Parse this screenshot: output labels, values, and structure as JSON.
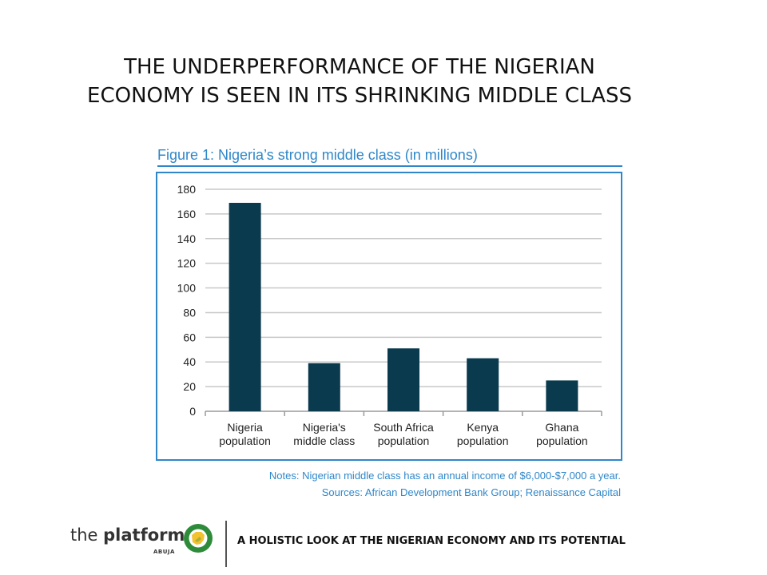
{
  "slide": {
    "title_line1": "THE UNDERPERFORMANCE OF THE NIGERIAN",
    "title_line2": "ECONOMY IS SEEN IN ITS SHRINKING MIDDLE CLASS"
  },
  "colors": {
    "bar": "#0a3a4e",
    "accent_blue": "#2f87c9",
    "grid": "#c8c8c8",
    "logo_green": "#2e8b3a",
    "logo_yellow": "#f2c230"
  },
  "chart_data": {
    "type": "bar",
    "title": "Figure 1: Nigeria’s strong middle class (in millions)",
    "categories": [
      [
        "Nigeria",
        "population"
      ],
      [
        "Nigeria's",
        "middle class"
      ],
      [
        "South Africa",
        "population"
      ],
      [
        "Kenya",
        "population"
      ],
      [
        "Ghana",
        "population"
      ]
    ],
    "values": [
      169,
      39,
      51,
      43,
      25
    ],
    "ylim": [
      0,
      180
    ],
    "yticks": [
      0,
      20,
      40,
      60,
      80,
      100,
      120,
      140,
      160,
      180
    ],
    "xlabel": "",
    "ylabel": "",
    "grid": true,
    "legend": "none"
  },
  "notes": {
    "line1": "Notes: Nigerian middle class has an annual income of $6,000-$7,000 a year.",
    "line2": "Sources: African Development Bank Group; Renaissance Capital"
  },
  "footer": {
    "logo_word1": "the ",
    "logo_word2": "platform",
    "logo_sub": "ABUJA",
    "logo_icon": "nigeria-map-ring-icon",
    "tagline": "A HOLISTIC LOOK AT THE NIGERIAN ECONOMY AND ITS POTENTIAL"
  }
}
